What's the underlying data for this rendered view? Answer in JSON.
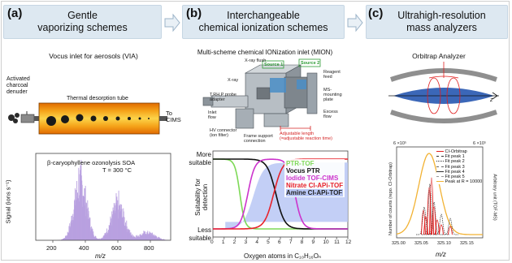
{
  "panels": {
    "a": {
      "letter": "(a)",
      "title_line1": "Gentle",
      "title_line2": "vaporizing schemes",
      "inlet_caption": "Vocus inlet for aerosols (VIA)",
      "denuder_line1": "Activated",
      "denuder_line2": "charcoal",
      "denuder_line3": "denuder",
      "tube_label": "Thermal desorption tube",
      "to_label": "To",
      "cims_label": "CIMS"
    },
    "b": {
      "letter": "(b)",
      "title_line1": "Interchangeable",
      "title_line2": "chemical ionization schemes",
      "inlet_caption": "Multi-scheme chemical IONization inlet (MION)",
      "diagram_labels": {
        "xray_flush": "X-ray flush",
        "source1": "Source 1",
        "source2": "Source 2",
        "xray": "X-ray",
        "reagent_feed": "Reagent feed",
        "tpr_probe": "T,RH,P probe",
        "adapter": "adapter",
        "ms_mounting": "MS-",
        "ms_mounting2": "mounting",
        "ms_mounting3": "plate",
        "inlet_flow": "Inlet",
        "inlet_flow2": "flow",
        "excess_flow": "Excess",
        "excess_flow2": "flow",
        "hv_connector": "HV connector",
        "hv_connector2": "(ion filter)",
        "frame_support": "Frame support",
        "frame_support2": "connection",
        "adjustable_length": "Adjustable length",
        "adjustable_length2": "(=adjustable reaction time)"
      }
    },
    "c": {
      "letter": "(c)",
      "title_line1": "Ultrahigh-resolution",
      "title_line2": "mass analyzers",
      "analyzer_caption": "Orbitrap Analyzer",
      "z_label": "z"
    }
  },
  "spectrum_chart": {
    "annotation_line1": "β-caryophyllene ozonolysis SOA",
    "annotation_line2": "T = 300 °C",
    "ylabel": "Signal (ions s⁻¹)",
    "xlabel": "m/z",
    "x_ticks": [
      "200",
      "400",
      "600",
      "800"
    ]
  },
  "suitability_chart": {
    "ylabel_line1": "Suitability for",
    "ylabel_line2": "detection",
    "y_top_line1": "More",
    "y_top_line2": "suitable",
    "y_bottom_line1": "Less",
    "y_bottom_line2": "suitable",
    "xlabel": "Oxygen atoms in C₁₀H₁₆Oₙ",
    "x_ticks": [
      "0",
      "1",
      "2",
      "3",
      "4",
      "5",
      "6",
      "7",
      "8",
      "9",
      "10",
      "11",
      "12"
    ],
    "legend": [
      "PTR-TOF",
      "Vocus PTR",
      "Iodide TOF-CIMS",
      "Nitrate CI-APi-TOF",
      "Amine CI-APi-TOF"
    ],
    "colors": {
      "ptr": "#7ed957",
      "vocus": "#111111",
      "iodide": "#cc33cc",
      "nitrate": "#e8222a",
      "amine": "#9fb2f0"
    }
  },
  "orbitrap_chart": {
    "scale_left": "6 ×10⁵",
    "scale_right": "6 ×10⁵",
    "ylabel_left": "Number of counts (repo. CI-Orbitrap)",
    "ylabel_right": "Arbitrary unit (TOF-MS)",
    "xlabel": "m/z",
    "x_ticks": [
      "325.00",
      "325.05",
      "325.10",
      "325.15"
    ],
    "legend": [
      "CI-Orbitrap",
      "Fit peak 1",
      "Fit peak 2",
      "Fit peak 3",
      "Fit peak 4",
      "Fit peak 5",
      "Peak at R = 10000"
    ]
  }
}
